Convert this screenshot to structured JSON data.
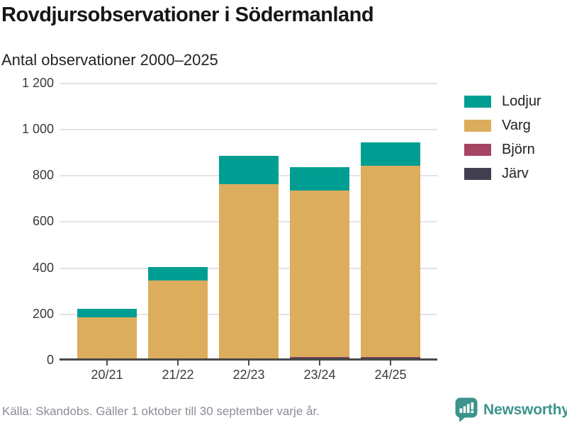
{
  "header": {
    "title": "Rovdjursobservationer i Södermanland",
    "subtitle": "Antal observationer 2000–2025"
  },
  "chart_data": {
    "type": "bar",
    "stacked": true,
    "title": "Rovdjursobservationer i Södermanland",
    "subtitle": "Antal observationer 2000–2025",
    "categories": [
      "20/21",
      "21/22",
      "22/23",
      "23/24",
      "24/25"
    ],
    "series": [
      {
        "name": "Lodjur",
        "color": "#009e92",
        "values": [
          38,
          58,
          122,
          102,
          101
        ]
      },
      {
        "name": "Varg",
        "color": "#dbad5d",
        "values": [
          178,
          340,
          760,
          724,
          834
        ]
      },
      {
        "name": "Björn",
        "color": "#a54563",
        "values": [
          0,
          0,
          0,
          4,
          4
        ]
      },
      {
        "name": "Järv",
        "color": "#423f50",
        "values": [
          0,
          0,
          0,
          2,
          2
        ]
      }
    ],
    "totals": [
      216,
      398,
      882,
      832,
      941
    ],
    "xlabel": "",
    "ylabel": "",
    "ylim": [
      0,
      1200
    ],
    "yticks": [
      0,
      200,
      400,
      600,
      800,
      1000,
      1200
    ],
    "ytick_labels": [
      "0",
      "200",
      "400",
      "600",
      "800",
      "1 000",
      "1 200"
    ],
    "grid": true,
    "legend_position": "right"
  },
  "footer": {
    "source": "Källa: Skandobs. Gäller 1 oktober till 30 september varje år.",
    "brand": "Newsworthy"
  }
}
